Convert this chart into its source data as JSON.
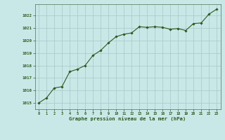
{
  "x": [
    0,
    1,
    2,
    3,
    4,
    5,
    6,
    7,
    8,
    9,
    10,
    11,
    12,
    13,
    14,
    15,
    16,
    17,
    18,
    19,
    20,
    21,
    22,
    23
  ],
  "y": [
    1015.0,
    1015.4,
    1016.2,
    1016.3,
    1017.5,
    1017.7,
    1018.0,
    1018.8,
    1019.2,
    1019.8,
    1020.3,
    1020.5,
    1020.6,
    1021.1,
    1021.05,
    1021.1,
    1021.05,
    1020.9,
    1020.95,
    1020.8,
    1021.35,
    1021.4,
    1022.1,
    1022.5
  ],
  "line_color": "#2d5a1b",
  "marker_color": "#2d5a1b",
  "bg_color": "#c8e8e8",
  "grid_color": "#a8c8c8",
  "xlabel": "Graphe pression niveau de la mer (hPa)",
  "xlabel_color": "#2d5a1b",
  "ylabel_ticks": [
    1015,
    1016,
    1017,
    1018,
    1019,
    1020,
    1021,
    1022
  ],
  "ylim": [
    1014.5,
    1022.9
  ],
  "xlim": [
    -0.5,
    23.5
  ],
  "tick_color": "#2d5a1b",
  "spine_color": "#507050"
}
